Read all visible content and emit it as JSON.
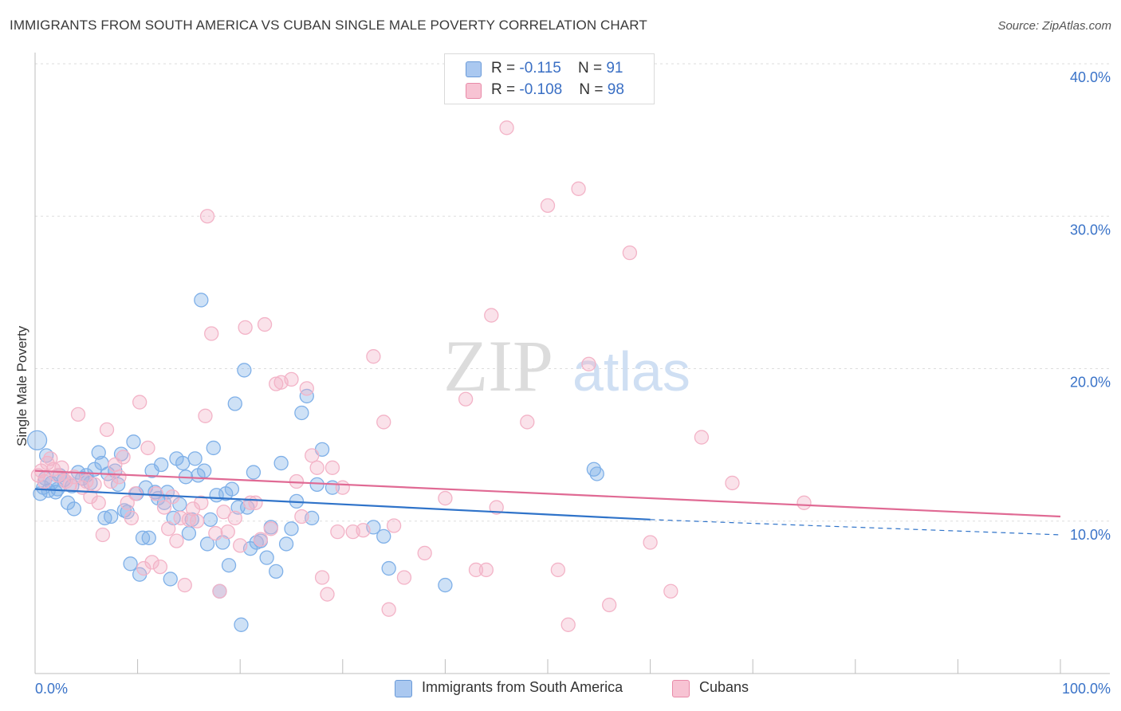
{
  "title": "IMMIGRANTS FROM SOUTH AMERICA VS CUBAN SINGLE MALE POVERTY CORRELATION CHART",
  "source": "Source: ZipAtlas.com",
  "watermark": {
    "zip": "ZIP",
    "atlas": "atlas"
  },
  "legend": {
    "rows": [
      {
        "r_label": "R = ",
        "r_value": "-0.115",
        "n_label": "N = ",
        "n_value": "91",
        "color": "#aac8f0",
        "border": "#6a9ad8"
      },
      {
        "r_label": "R = ",
        "r_value": "-0.108",
        "n_label": "N = ",
        "n_value": "98",
        "color": "#f7c3d3",
        "border": "#e88aa8"
      }
    ]
  },
  "chart_data": {
    "type": "scatter",
    "xlabel": "",
    "ylabel": "Single Male Poverty",
    "xlim": [
      0,
      100
    ],
    "ylim": [
      0,
      40
    ],
    "x_tick_labels": [
      "0.0%",
      "100.0%"
    ],
    "y_ticks": [
      10,
      20,
      30,
      40
    ],
    "y_tick_labels": [
      "10.0%",
      "20.0%",
      "30.0%",
      "40.0%"
    ],
    "grid": true,
    "legend_position": "bottom",
    "series": [
      {
        "name": "Immigrants from South America",
        "color": "#7fb0e8",
        "line_color": "#2f73c9",
        "trend": {
          "x0": 0,
          "y0": 12.1,
          "x1": 60,
          "y1": 10.1,
          "dash_to_x": 100,
          "dash_to_y": 9.1
        },
        "points": [
          [
            0.2,
            15.3
          ],
          [
            0.5,
            11.8
          ],
          [
            0.8,
            12.2
          ],
          [
            1.0,
            12.8
          ],
          [
            1.3,
            12.0
          ],
          [
            1.6,
            12.5
          ],
          [
            2.0,
            11.9
          ],
          [
            2.4,
            13.0
          ],
          [
            2.8,
            12.7
          ],
          [
            3.2,
            11.2
          ],
          [
            3.6,
            12.3
          ],
          [
            3.8,
            10.8
          ],
          [
            4.2,
            13.2
          ],
          [
            4.6,
            12.8
          ],
          [
            5.0,
            13.0
          ],
          [
            5.4,
            12.5
          ],
          [
            5.8,
            13.4
          ],
          [
            6.2,
            14.5
          ],
          [
            6.5,
            13.8
          ],
          [
            6.8,
            10.2
          ],
          [
            7.1,
            13.1
          ],
          [
            7.4,
            10.3
          ],
          [
            7.8,
            13.3
          ],
          [
            8.1,
            12.4
          ],
          [
            8.4,
            14.4
          ],
          [
            8.7,
            10.7
          ],
          [
            9.0,
            10.6
          ],
          [
            9.3,
            7.2
          ],
          [
            9.6,
            15.2
          ],
          [
            9.9,
            11.8
          ],
          [
            10.2,
            6.5
          ],
          [
            10.5,
            8.9
          ],
          [
            10.8,
            12.2
          ],
          [
            11.1,
            8.9
          ],
          [
            11.4,
            13.3
          ],
          [
            11.7,
            11.9
          ],
          [
            12.0,
            11.5
          ],
          [
            12.3,
            13.7
          ],
          [
            12.6,
            11.2
          ],
          [
            12.9,
            11.9
          ],
          [
            13.2,
            6.2
          ],
          [
            13.5,
            10.2
          ],
          [
            13.8,
            14.1
          ],
          [
            14.1,
            11.1
          ],
          [
            14.4,
            13.8
          ],
          [
            14.7,
            12.9
          ],
          [
            15.0,
            9.2
          ],
          [
            15.3,
            10.1
          ],
          [
            15.6,
            14.1
          ],
          [
            15.9,
            13.0
          ],
          [
            16.2,
            24.5
          ],
          [
            16.5,
            13.3
          ],
          [
            16.8,
            8.5
          ],
          [
            17.1,
            10.1
          ],
          [
            17.4,
            14.8
          ],
          [
            17.7,
            11.7
          ],
          [
            18.0,
            5.4
          ],
          [
            18.3,
            8.6
          ],
          [
            18.6,
            11.8
          ],
          [
            18.9,
            7.1
          ],
          [
            19.2,
            12.1
          ],
          [
            19.5,
            17.7
          ],
          [
            19.8,
            10.9
          ],
          [
            20.1,
            3.2
          ],
          [
            20.4,
            19.9
          ],
          [
            20.7,
            10.9
          ],
          [
            21.0,
            8.2
          ],
          [
            21.3,
            13.2
          ],
          [
            21.6,
            8.6
          ],
          [
            22.0,
            8.7
          ],
          [
            22.6,
            7.6
          ],
          [
            23.0,
            9.6
          ],
          [
            23.5,
            6.7
          ],
          [
            24.0,
            13.8
          ],
          [
            24.5,
            8.5
          ],
          [
            25.0,
            9.5
          ],
          [
            25.5,
            11.3
          ],
          [
            26.0,
            17.1
          ],
          [
            26.5,
            18.2
          ],
          [
            27.0,
            10.2
          ],
          [
            27.5,
            12.4
          ],
          [
            28.0,
            14.7
          ],
          [
            29.0,
            12.2
          ],
          [
            33.0,
            9.6
          ],
          [
            34.0,
            9.0
          ],
          [
            34.5,
            6.9
          ],
          [
            40.0,
            5.8
          ],
          [
            54.5,
            13.4
          ],
          [
            54.8,
            13.1
          ],
          [
            1.1,
            14.3
          ],
          [
            2.2,
            12.1
          ]
        ]
      },
      {
        "name": "Cubans",
        "color": "#f3b3c7",
        "line_color": "#e06a94",
        "trend": {
          "x0": 0,
          "y0": 13.3,
          "x1": 100,
          "y1": 10.3
        },
        "points": [
          [
            0.3,
            13.0
          ],
          [
            0.6,
            13.3
          ],
          [
            0.9,
            12.6
          ],
          [
            1.2,
            13.8
          ],
          [
            1.5,
            14.1
          ],
          [
            1.8,
            13.4
          ],
          [
            2.2,
            13.0
          ],
          [
            2.6,
            13.5
          ],
          [
            3.0,
            12.6
          ],
          [
            3.4,
            12.4
          ],
          [
            3.8,
            12.9
          ],
          [
            4.2,
            17.0
          ],
          [
            4.6,
            12.2
          ],
          [
            5.0,
            12.6
          ],
          [
            5.4,
            11.6
          ],
          [
            5.8,
            12.4
          ],
          [
            6.2,
            11.2
          ],
          [
            6.6,
            9.1
          ],
          [
            7.0,
            16.0
          ],
          [
            7.4,
            12.6
          ],
          [
            7.8,
            13.7
          ],
          [
            8.2,
            12.9
          ],
          [
            8.6,
            14.2
          ],
          [
            9.0,
            11.2
          ],
          [
            9.4,
            10.2
          ],
          [
            9.8,
            11.8
          ],
          [
            10.2,
            17.8
          ],
          [
            10.6,
            6.9
          ],
          [
            11.0,
            14.8
          ],
          [
            11.4,
            7.3
          ],
          [
            11.8,
            11.8
          ],
          [
            12.2,
            7.0
          ],
          [
            12.6,
            10.9
          ],
          [
            13.0,
            9.5
          ],
          [
            13.4,
            11.6
          ],
          [
            13.8,
            8.7
          ],
          [
            14.2,
            10.2
          ],
          [
            14.6,
            5.8
          ],
          [
            15.0,
            10.1
          ],
          [
            15.4,
            10.8
          ],
          [
            15.8,
            10.0
          ],
          [
            16.2,
            11.2
          ],
          [
            16.6,
            16.9
          ],
          [
            16.8,
            30.0
          ],
          [
            17.2,
            22.3
          ],
          [
            17.6,
            9.2
          ],
          [
            18.0,
            5.4
          ],
          [
            18.4,
            10.6
          ],
          [
            18.8,
            9.3
          ],
          [
            19.5,
            10.2
          ],
          [
            20.0,
            8.4
          ],
          [
            20.5,
            22.7
          ],
          [
            21.0,
            11.2
          ],
          [
            21.5,
            11.2
          ],
          [
            22.0,
            8.8
          ],
          [
            22.4,
            22.9
          ],
          [
            23.0,
            9.5
          ],
          [
            23.5,
            19.0
          ],
          [
            24.0,
            19.1
          ],
          [
            25.0,
            19.3
          ],
          [
            25.5,
            12.6
          ],
          [
            26.0,
            10.3
          ],
          [
            26.5,
            18.7
          ],
          [
            27.0,
            14.3
          ],
          [
            27.5,
            13.5
          ],
          [
            28.0,
            6.3
          ],
          [
            28.5,
            5.2
          ],
          [
            29.0,
            13.5
          ],
          [
            29.5,
            9.3
          ],
          [
            30.0,
            12.2
          ],
          [
            31.0,
            9.3
          ],
          [
            32.0,
            9.4
          ],
          [
            33.0,
            20.8
          ],
          [
            34.0,
            16.5
          ],
          [
            34.5,
            4.2
          ],
          [
            35.0,
            9.7
          ],
          [
            36.0,
            6.3
          ],
          [
            38.0,
            7.9
          ],
          [
            40.0,
            11.5
          ],
          [
            42.0,
            18.0
          ],
          [
            43.0,
            6.8
          ],
          [
            44.0,
            6.8
          ],
          [
            44.5,
            23.5
          ],
          [
            45.0,
            10.9
          ],
          [
            46.0,
            35.8
          ],
          [
            48.0,
            16.5
          ],
          [
            50.0,
            30.7
          ],
          [
            51.0,
            6.8
          ],
          [
            52.0,
            3.2
          ],
          [
            53.0,
            31.8
          ],
          [
            54.0,
            20.3
          ],
          [
            56.0,
            4.5
          ],
          [
            58.0,
            27.6
          ],
          [
            60.0,
            8.6
          ],
          [
            62.0,
            5.4
          ],
          [
            65.0,
            15.5
          ],
          [
            68.0,
            12.5
          ],
          [
            75.0,
            11.2
          ]
        ]
      }
    ]
  },
  "bottom_legend": [
    {
      "label": "Immigrants from South America",
      "color": "#aac8f0",
      "border": "#6a9ad8"
    },
    {
      "label": "Cubans",
      "color": "#f7c3d3",
      "border": "#e88aa8"
    }
  ]
}
